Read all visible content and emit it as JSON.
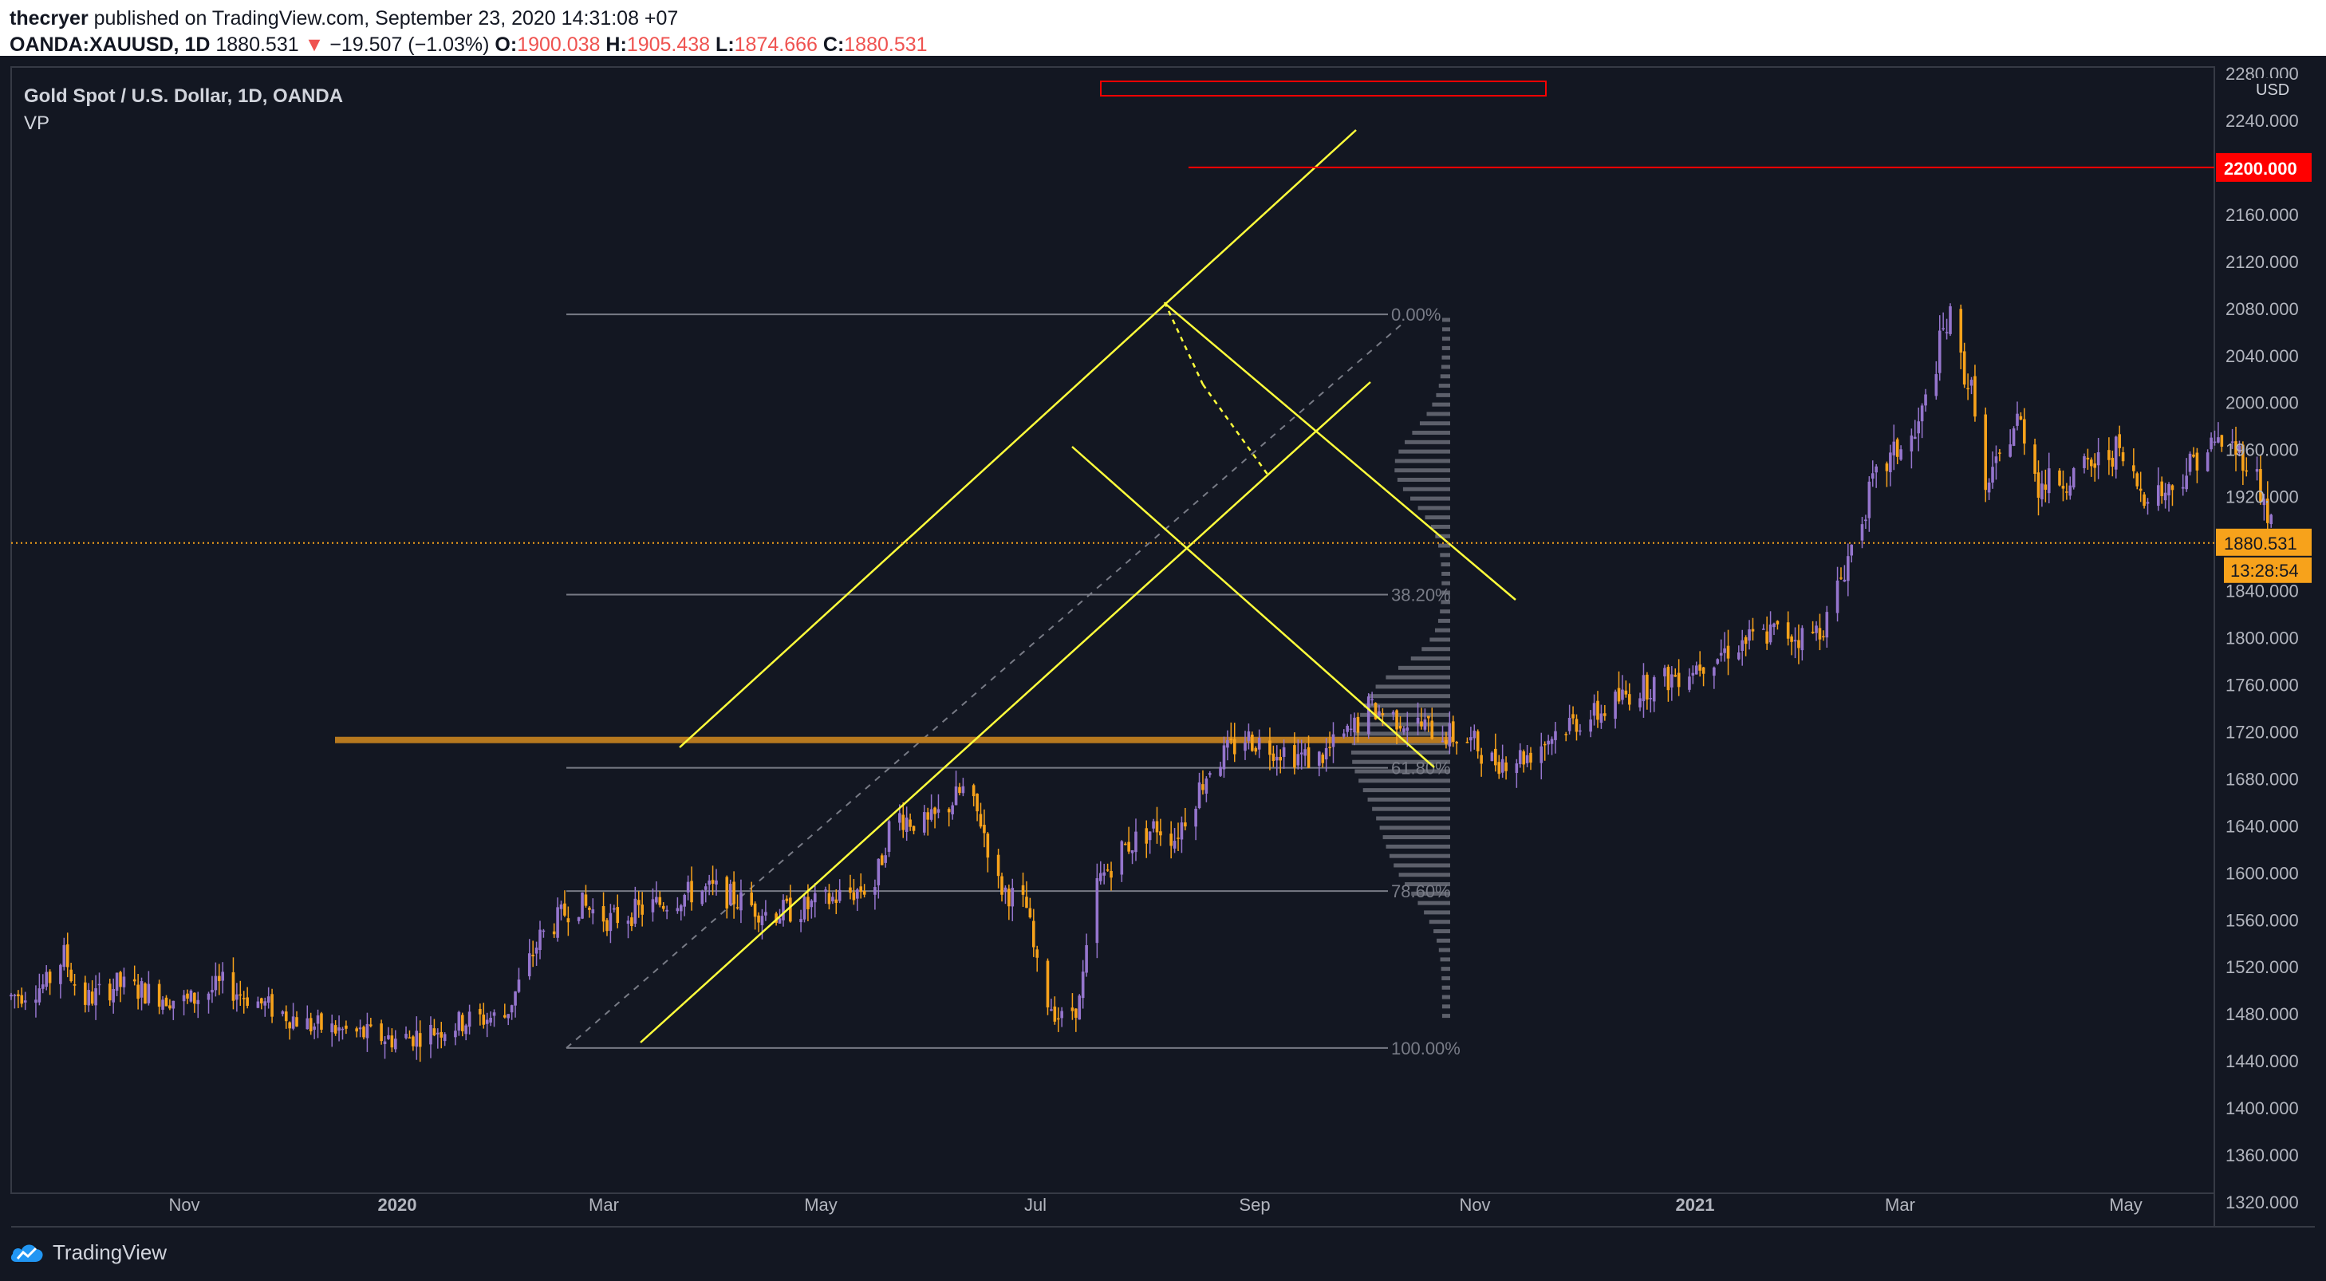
{
  "header": {
    "author": "thecryer",
    "published_text": "published on TradingView.com, September 23, 2020 14:31:08 +07",
    "symbol": "OANDA:XAUUSD, 1D",
    "last_price": "1880.531",
    "change": "−19.507 (−1.03%)",
    "open_label": "O:",
    "open": "1900.038",
    "high_label": "H:",
    "high": "1905.438",
    "low_label": "L:",
    "low": "1874.666",
    "close_label": "C:",
    "close": "1880.531"
  },
  "legend": {
    "title": "Gold Spot / U.S. Dollar, 1D, OANDA",
    "indicator": "VP"
  },
  "price_axis": {
    "currency": "USD",
    "ticks": [
      1320,
      1360,
      1400,
      1440,
      1480,
      1520,
      1560,
      1600,
      1640,
      1680,
      1720,
      1760,
      1800,
      1840,
      1880,
      1920,
      1960,
      2000,
      2040,
      2080,
      2120,
      2160,
      2200,
      2240,
      2280
    ],
    "tick_labels": [
      "1320.000",
      "1360.000",
      "1400.000",
      "1440.000",
      "1480.000",
      "1520.000",
      "1560.000",
      "1600.000",
      "1640.000",
      "1680.000",
      "1720.000",
      "1760.000",
      "1800.000",
      "1840.000",
      "1880.000",
      "1920.000",
      "1960.000",
      "2000.000",
      "2040.000",
      "2080.000",
      "2120.000",
      "2160.000",
      "2200.000",
      "2240.000",
      "2280.000"
    ],
    "target_label": "2200.000",
    "current_label": "1880.531",
    "countdown_label": "13:28:54"
  },
  "time_axis": {
    "labels": [
      "Nov",
      "2020",
      "Mar",
      "May",
      "Jul",
      "Sep",
      "Nov",
      "2021",
      "Mar",
      "May"
    ],
    "bold": [
      false,
      true,
      false,
      false,
      false,
      false,
      false,
      true,
      false,
      false
    ]
  },
  "fib": {
    "levels": [
      {
        "ratio": 0,
        "label": "0.00%"
      },
      {
        "ratio": 0.382,
        "label": "38.20%"
      },
      {
        "ratio": 0.618,
        "label": "61.80%"
      },
      {
        "ratio": 0.786,
        "label": "78.60%"
      },
      {
        "ratio": 1,
        "label": "100.00%"
      }
    ],
    "high": 2075,
    "low": 1451
  },
  "colors": {
    "background": "#131722",
    "bull": "#9575cd",
    "bear": "#f7a21b",
    "drawing": "#ffff3b",
    "target": "#ff0000",
    "current_price": "#f7a21b",
    "support_band": "#b7791f",
    "fib_line": "#787b86",
    "volume_profile": "#5d606b"
  },
  "footer": {
    "brand": "TradingView"
  }
}
